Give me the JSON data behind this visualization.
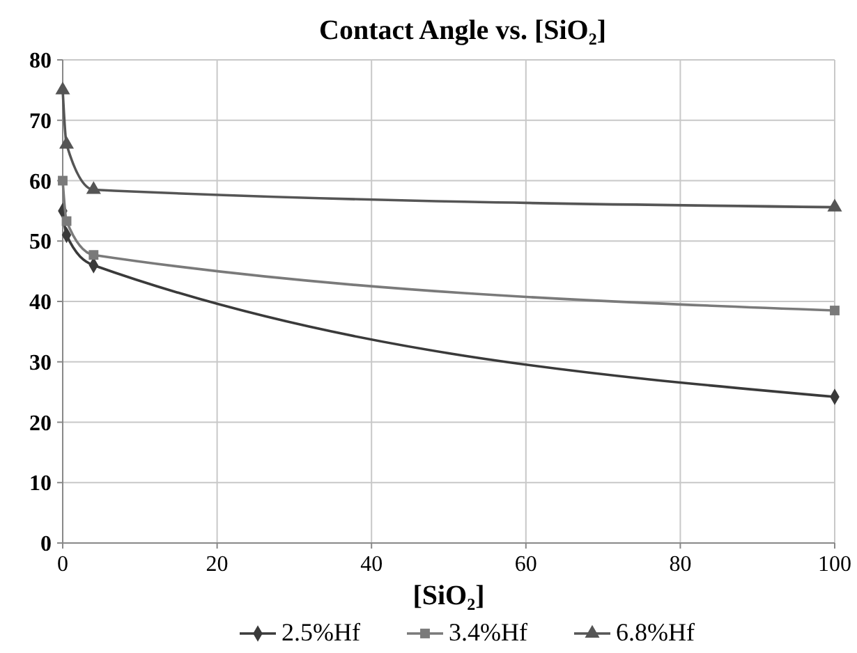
{
  "chart_data": {
    "type": "line",
    "title": "Contact Angle vs. [SiO₂]",
    "xlabel": "[SiO₂]",
    "x": [
      0,
      0.5,
      4,
      100
    ],
    "series": [
      {
        "name": "2.5%Hf",
        "color": "#3a3a3a",
        "marker": "diamond",
        "values": [
          55,
          51,
          46,
          24.2
        ]
      },
      {
        "name": "3.4%Hf",
        "color": "#7a7a7a",
        "marker": "square",
        "values": [
          60,
          53.3,
          47.7,
          38.5
        ]
      },
      {
        "name": "6.8%Hf",
        "color": "#555555",
        "marker": "triangle",
        "values": [
          75,
          66,
          58.5,
          55.6
        ]
      }
    ],
    "xlim": [
      0,
      100
    ],
    "xticks": [
      0,
      20,
      40,
      60,
      80,
      100
    ],
    "ylim": [
      0,
      80
    ],
    "yticks": [
      0,
      10,
      20,
      30,
      40,
      50,
      60,
      70,
      80
    ],
    "grid": true,
    "legend": "bottom",
    "line_style": "solid"
  }
}
